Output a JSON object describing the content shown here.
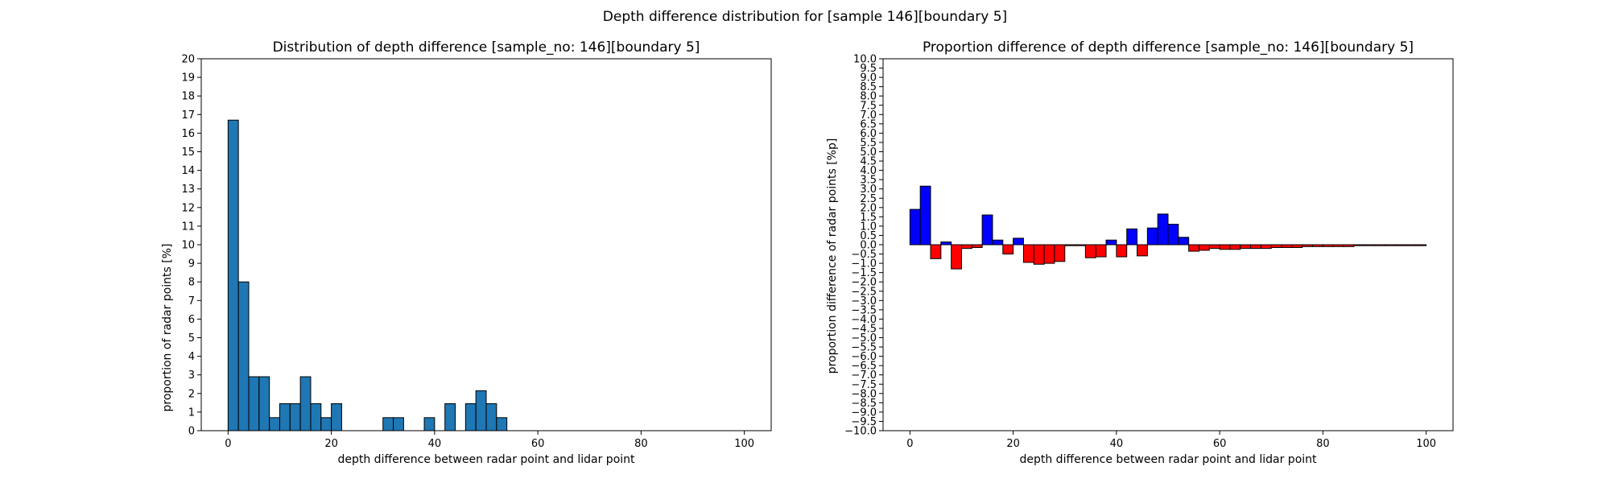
{
  "figure": {
    "suptitle": "Depth difference distribution for [sample 146][boundary 5]"
  },
  "colors": {
    "hist_fill": "#1f77b4",
    "positive": "#0000ff",
    "negative": "#ff0000",
    "edge": "#000000"
  },
  "chart_data": [
    {
      "type": "bar",
      "title": "Distribution of depth difference [sample_no: 146][boundary 5]",
      "xlabel": "depth difference between radar point and lidar point",
      "ylabel": "proportion of radar points [%]",
      "xlim": [
        -5.2,
        105.2
      ],
      "ylim": [
        0,
        20
      ],
      "xticks": [
        0,
        20,
        40,
        60,
        80,
        100
      ],
      "yticks": [
        0,
        1,
        2,
        3,
        4,
        5,
        6,
        7,
        8,
        9,
        10,
        11,
        12,
        13,
        14,
        15,
        16,
        17,
        18,
        19,
        20
      ],
      "bin_width": 2,
      "bin_starts": [
        0,
        2,
        4,
        6,
        8,
        10,
        12,
        14,
        16,
        18,
        20,
        30,
        32,
        38,
        42,
        46,
        48,
        50,
        52
      ],
      "values": [
        16.7,
        8.0,
        2.9,
        2.9,
        0.7,
        1.45,
        1.45,
        2.9,
        1.45,
        0.7,
        1.45,
        0.7,
        0.7,
        0.7,
        1.45,
        1.45,
        2.15,
        1.45,
        0.7
      ],
      "grid": false
    },
    {
      "type": "bar",
      "title": "Proportion difference of depth difference [sample_no: 146][boundary 5]",
      "xlabel": "depth difference between radar point and lidar point",
      "ylabel": "proportion difference of radar points [%p]",
      "xlim": [
        -5.2,
        105.2
      ],
      "ylim": [
        -10,
        10
      ],
      "xticks": [
        0,
        20,
        40,
        60,
        80,
        100
      ],
      "yticks": [
        "10.0",
        "9.5",
        "9.0",
        "8.5",
        "8.0",
        "7.5",
        "7.0",
        "6.5",
        "6.0",
        "5.5",
        "5.0",
        "4.5",
        "4.0",
        "3.5",
        "3.0",
        "2.5",
        "2.0",
        "1.5",
        "1.0",
        "0.5",
        "0.0",
        "−0.5",
        "−1.0",
        "−1.5",
        "−2.0",
        "−2.5",
        "−3.0",
        "−3.5",
        "−4.0",
        "−4.5",
        "−5.0",
        "−5.5",
        "−6.0",
        "−6.5",
        "−7.0",
        "−7.5",
        "−8.0",
        "−8.5",
        "−9.0",
        "−9.5",
        "−10.0"
      ],
      "bin_width": 2,
      "bin_starts": [
        0,
        2,
        4,
        6,
        8,
        10,
        12,
        14,
        16,
        18,
        20,
        22,
        24,
        26,
        28,
        30,
        32,
        34,
        36,
        38,
        40,
        42,
        44,
        46,
        48,
        50,
        52,
        54,
        56,
        58,
        60,
        62,
        64,
        66,
        68,
        70,
        72,
        74,
        76,
        78,
        80,
        82,
        84,
        86,
        88,
        90,
        92,
        94,
        96,
        98
      ],
      "values": [
        1.9,
        3.15,
        -0.75,
        0.15,
        -1.3,
        -0.2,
        -0.15,
        1.6,
        0.25,
        -0.5,
        0.35,
        -0.95,
        -1.05,
        -1.0,
        -0.9,
        -0.05,
        -0.05,
        -0.7,
        -0.65,
        0.25,
        -0.65,
        0.85,
        -0.6,
        0.9,
        1.65,
        1.1,
        0.4,
        -0.35,
        -0.3,
        -0.2,
        -0.25,
        -0.25,
        -0.2,
        -0.2,
        -0.2,
        -0.15,
        -0.15,
        -0.15,
        -0.1,
        -0.1,
        -0.1,
        -0.1,
        -0.1,
        -0.05,
        -0.05,
        -0.05,
        -0.05,
        -0.05,
        -0.05,
        -0.05
      ],
      "grid": false
    }
  ]
}
